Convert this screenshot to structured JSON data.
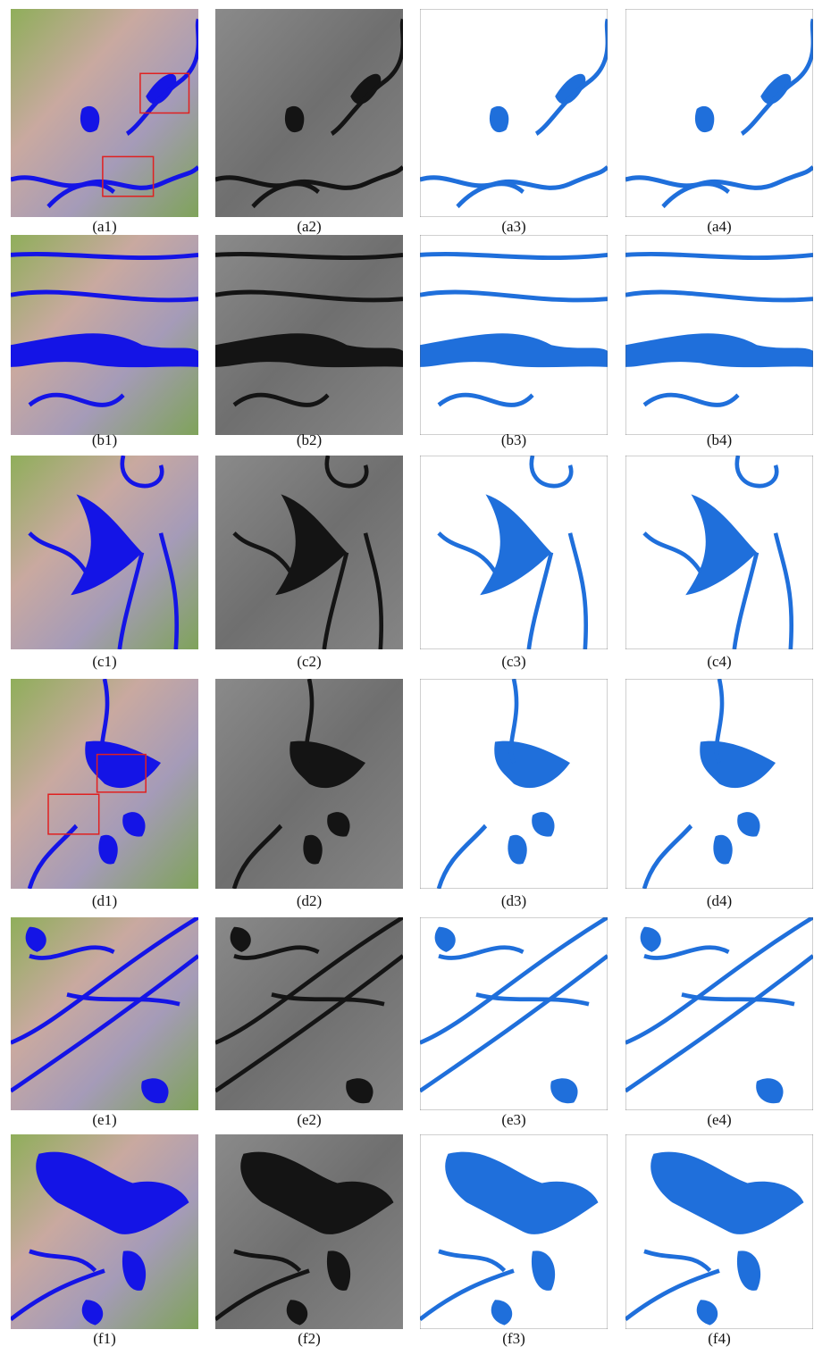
{
  "figure": {
    "rows": [
      [
        "(a1)",
        "(a2)",
        "(a3)",
        "(a4)"
      ],
      [
        "(b1)",
        "(b2)",
        "(b3)",
        "(b4)"
      ],
      [
        "(c1)",
        "(c2)",
        "(c3)",
        "(c4)"
      ],
      [
        "(d1)",
        "(d2)",
        "(d3)",
        "(d4)"
      ],
      [
        "(e1)",
        "(e2)",
        "(e3)",
        "(e4)"
      ],
      [
        "(f1)",
        "(f2)",
        "(f3)",
        "(f4)"
      ]
    ]
  }
}
